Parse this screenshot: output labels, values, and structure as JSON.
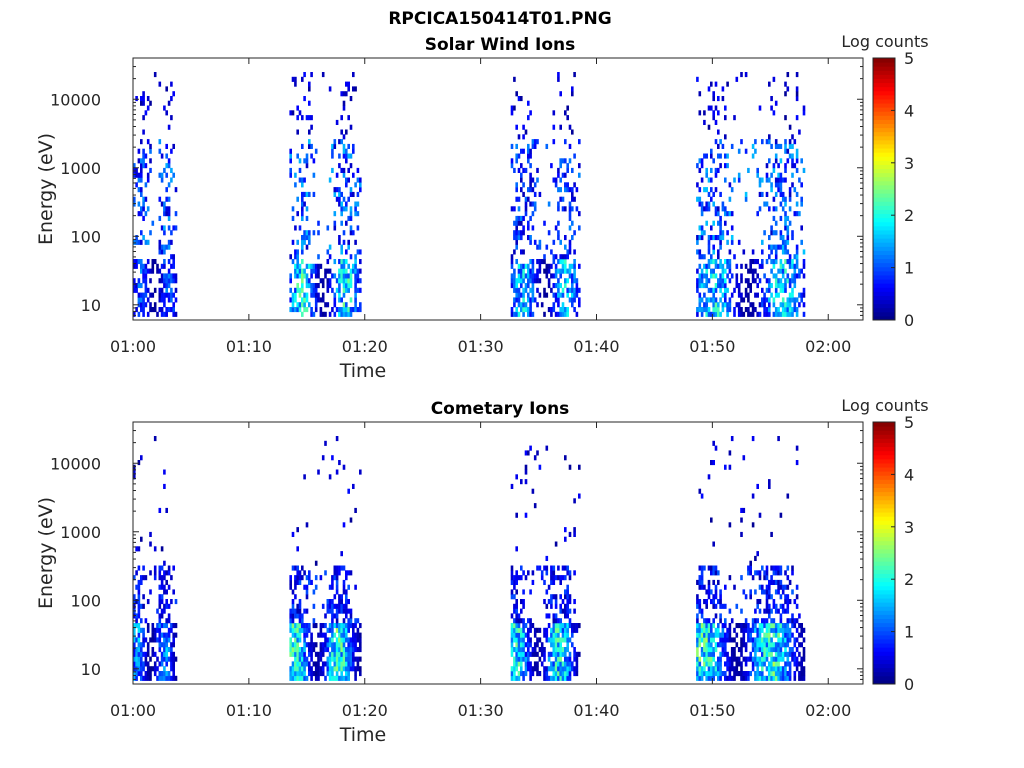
{
  "figure_title": "RPCICA150414T01.PNG",
  "chart_data": [
    {
      "type": "heatmap",
      "title": "Solar Wind Ions",
      "xlabel": "Time",
      "ylabel": "Energy (eV)",
      "x_ticks": [
        "01:00",
        "01:10",
        "01:20",
        "01:30",
        "01:40",
        "01:50",
        "02:00"
      ],
      "x_tick_minutes": [
        0,
        10,
        20,
        30,
        40,
        50,
        60
      ],
      "xlim_minutes": [
        0,
        63
      ],
      "y_ticks": [
        "10",
        "100",
        "1000",
        "10000"
      ],
      "y_tick_values": [
        10,
        100,
        1000,
        10000
      ],
      "yscale": "log",
      "ylim": [
        6,
        40000
      ],
      "colorbar": {
        "label": "Log counts",
        "ticks": [
          "0",
          "1",
          "2",
          "3",
          "4",
          "5"
        ],
        "range": [
          0,
          5
        ],
        "colormap": "jet"
      },
      "bursts": [
        {
          "start_min": 0.0,
          "end_min": 3.8,
          "lo_level": 1.4,
          "hi_level": 1.5
        },
        {
          "start_min": 13.5,
          "end_min": 19.6,
          "lo_level": 2.6,
          "hi_level": 1.6
        },
        {
          "start_min": 32.6,
          "end_min": 38.6,
          "lo_level": 2.2,
          "hi_level": 1.3
        },
        {
          "start_min": 48.6,
          "end_min": 58.0,
          "lo_level": 2.4,
          "hi_level": 1.6
        }
      ]
    },
    {
      "type": "heatmap",
      "title": "Cometary Ions",
      "xlabel": "Time",
      "ylabel": "Energy (eV)",
      "x_ticks": [
        "01:00",
        "01:10",
        "01:20",
        "01:30",
        "01:40",
        "01:50",
        "02:00"
      ],
      "x_tick_minutes": [
        0,
        10,
        20,
        30,
        40,
        50,
        60
      ],
      "xlim_minutes": [
        0,
        63
      ],
      "y_ticks": [
        "10",
        "100",
        "1000",
        "10000"
      ],
      "y_tick_values": [
        10,
        100,
        1000,
        10000
      ],
      "yscale": "log",
      "ylim": [
        6,
        40000
      ],
      "colorbar": {
        "label": "Log counts",
        "ticks": [
          "0",
          "1",
          "2",
          "3",
          "4",
          "5"
        ],
        "range": [
          0,
          5
        ],
        "colormap": "jet"
      },
      "bursts": [
        {
          "start_min": 0.0,
          "end_min": 3.8,
          "lo_level": 1.9,
          "hi_level": 1.0
        },
        {
          "start_min": 13.5,
          "end_min": 19.6,
          "lo_level": 2.8,
          "hi_level": 1.1
        },
        {
          "start_min": 32.6,
          "end_min": 38.6,
          "lo_level": 2.6,
          "hi_level": 1.0
        },
        {
          "start_min": 48.6,
          "end_min": 58.0,
          "lo_level": 2.9,
          "hi_level": 1.1
        }
      ]
    }
  ]
}
